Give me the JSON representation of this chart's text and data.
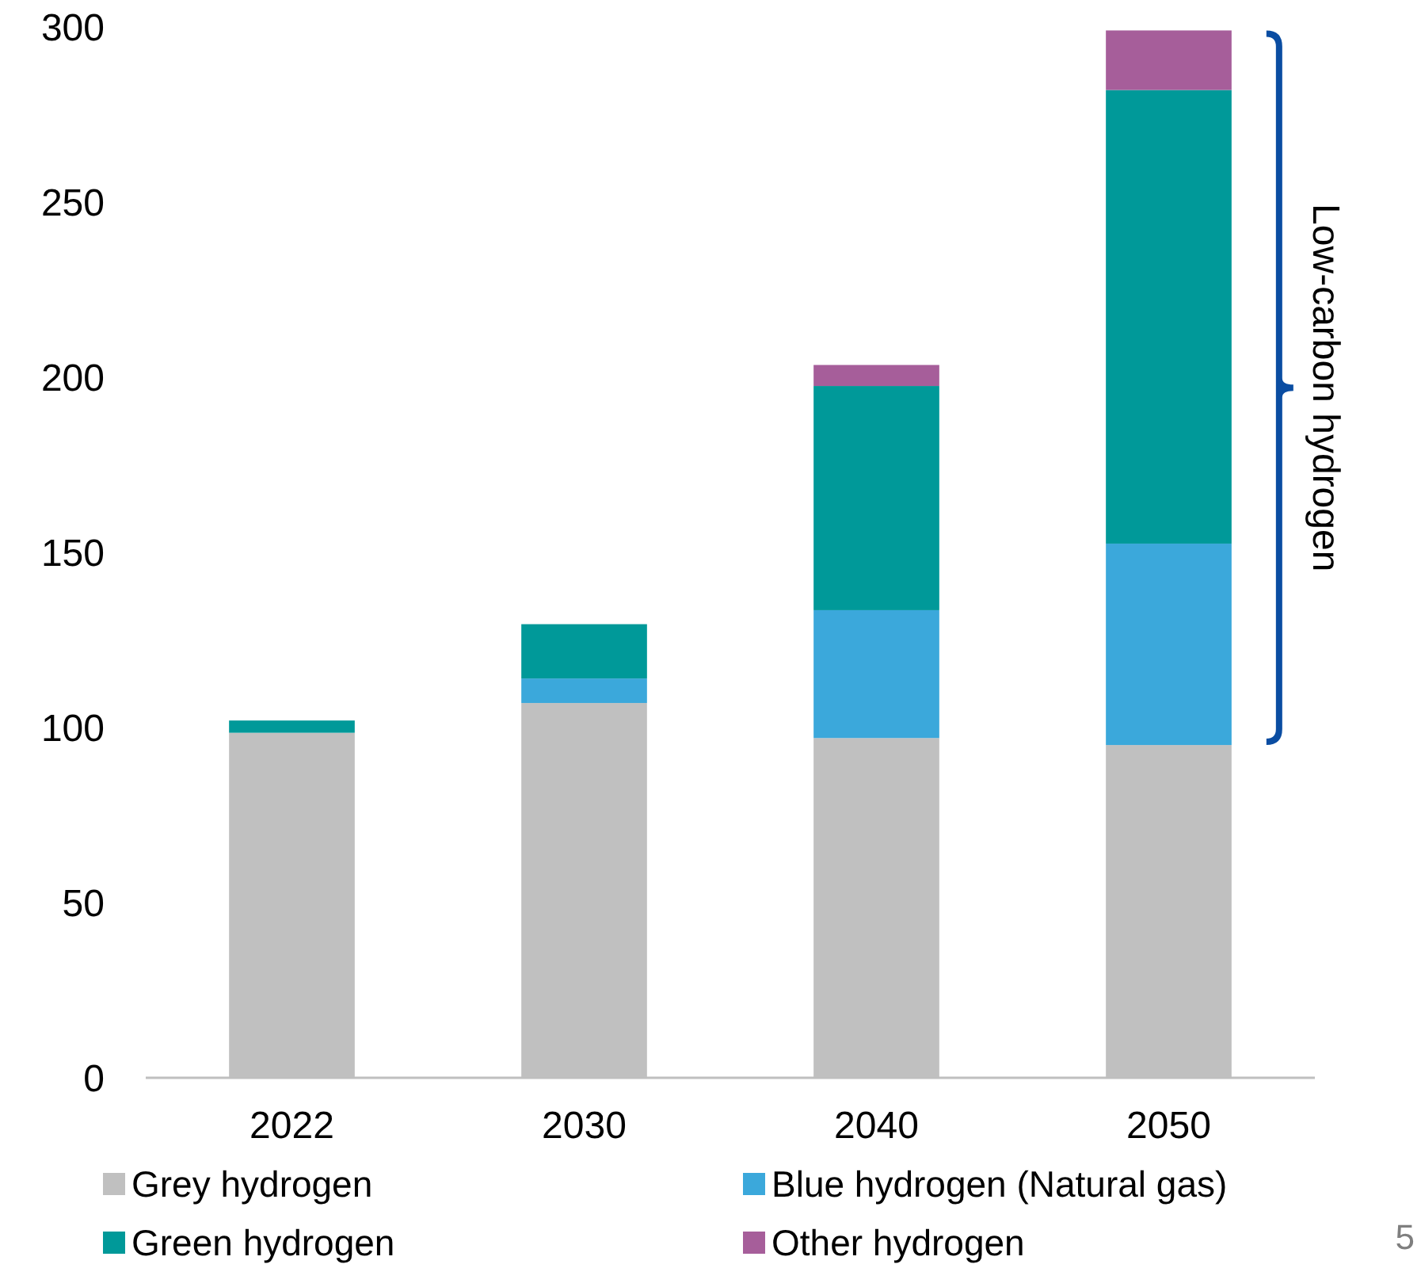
{
  "chart_data": {
    "type": "bar",
    "stacked": true,
    "categories": [
      "2022",
      "2030",
      "2040",
      "2050"
    ],
    "series": [
      {
        "name": "Grey hydrogen",
        "color": "#c0c0c0",
        "values": [
          98.5,
          107,
          97,
          95
        ]
      },
      {
        "name": "Blue hydrogen (Natural gas)",
        "color": "#3ba8db",
        "values": [
          null,
          7,
          36.5,
          57.5
        ]
      },
      {
        "name": "Green hydrogen",
        "color": "#009999",
        "values": [
          3.5,
          15.5,
          64,
          129.5
        ]
      },
      {
        "name": "Other hydrogen",
        "color": "#a65e9a",
        "values": [
          null,
          null,
          6,
          17
        ]
      }
    ],
    "ylim": [
      0,
      300
    ],
    "yticks": [
      0,
      50,
      100,
      150,
      200,
      250,
      300
    ],
    "legend": "bottom",
    "annotations": [
      "Low-carbon hydrogen",
      "5"
    ]
  }
}
